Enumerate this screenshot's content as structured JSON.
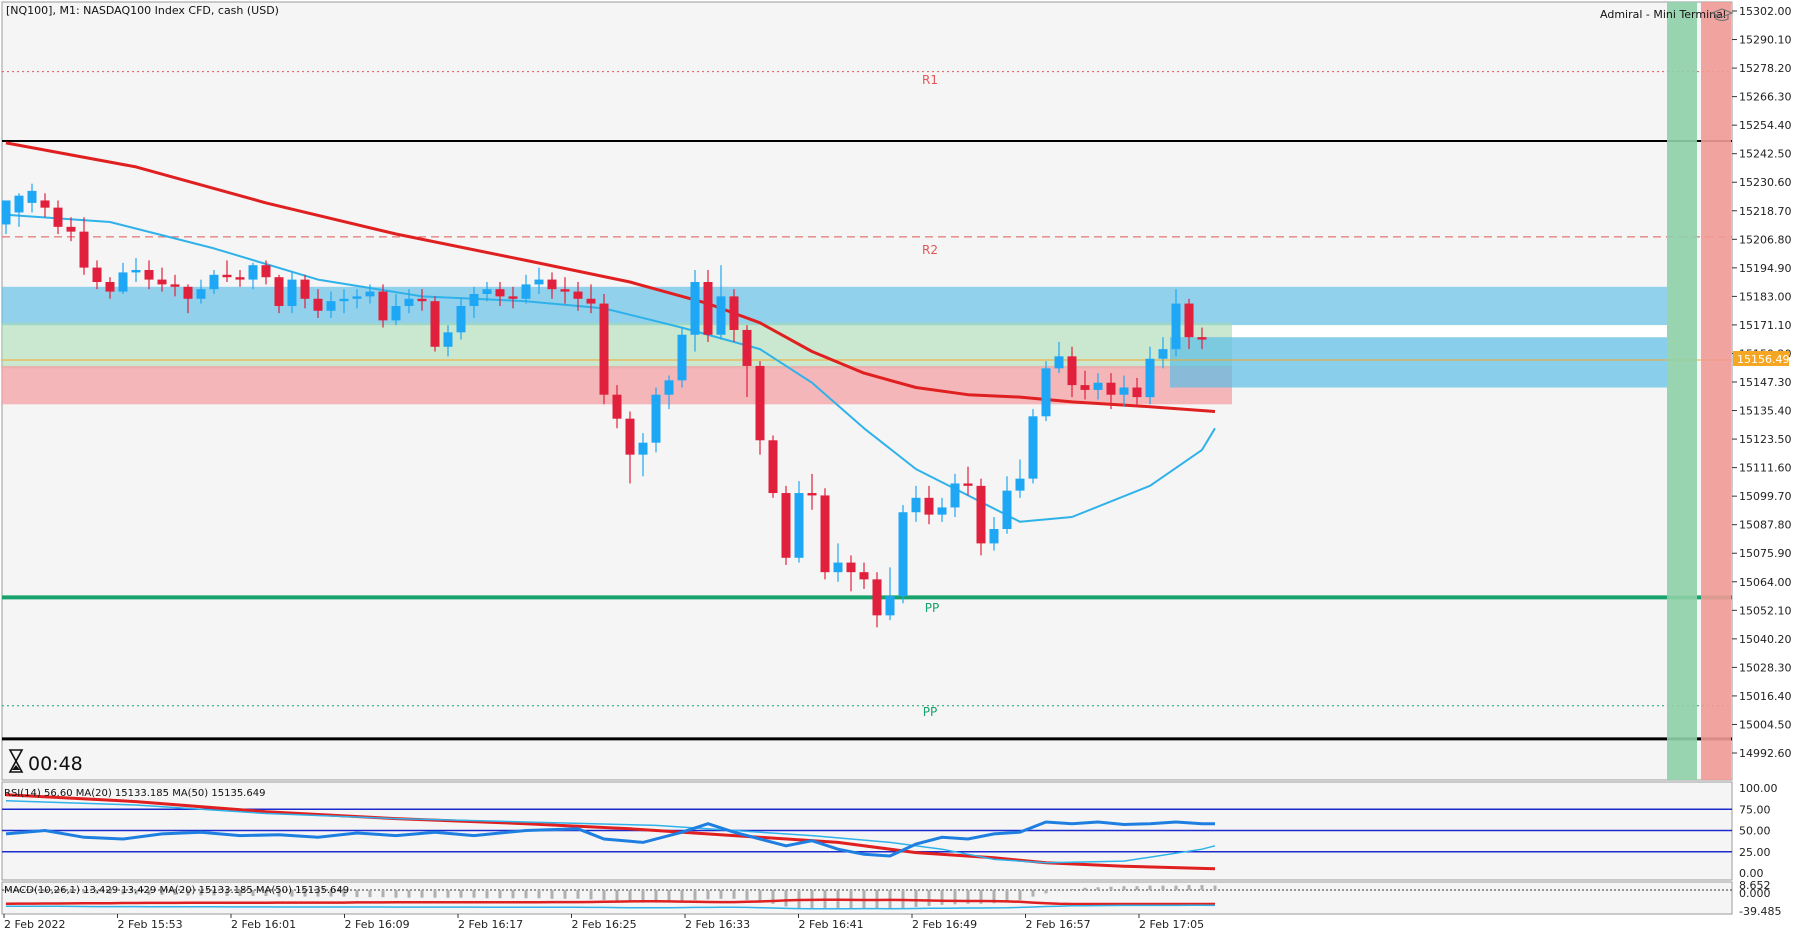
{
  "header": {
    "symbol": "[NQ100], M1:  NASDAQ100 Index CFD, cash (USD)",
    "terminal": "Admiral - Mini Terminal",
    "timer": "00:48"
  },
  "colors": {
    "bull": "#1ea7f5",
    "bear": "#e0203c",
    "ma_fast": "#2fb2ea",
    "ma_slow": "#e02020",
    "support_green": "#17a36b",
    "resistance_red": "#e05757",
    "buy_panel": "#8fd0a8",
    "sell_panel": "#f19a96",
    "price_tag": "#f5a623"
  },
  "levels": {
    "r1_label": "R1",
    "r2_label": "R2",
    "pp_label": "PP",
    "pp_label_2": "PP",
    "current_price": "15156.49"
  },
  "price_axis": {
    "ticks": [
      "15302.00",
      "15290.10",
      "15278.20",
      "15266.30",
      "15254.40",
      "15242.50",
      "15230.60",
      "15218.70",
      "15206.80",
      "15194.90",
      "15183.00",
      "15171.10",
      "15159.20",
      "15147.30",
      "15135.40",
      "15123.50",
      "15111.60",
      "15099.70",
      "15087.80",
      "15075.90",
      "15064.00",
      "15052.10",
      "15040.20",
      "15028.30",
      "15016.40",
      "15004.50",
      "14992.60"
    ]
  },
  "time_axis": {
    "labels": [
      "2 Feb 2022",
      "2 Feb 15:53",
      "2 Feb 16:01",
      "2 Feb 16:09",
      "2 Feb 16:17",
      "2 Feb 16:25",
      "2 Feb 16:33",
      "2 Feb 16:41",
      "2 Feb 16:49",
      "2 Feb 16:57",
      "2 Feb 17:05"
    ]
  },
  "rsi": {
    "label": "RSI(14) 56.60 MA(20) 15133.185 MA(50) 15135.649",
    "ticks": [
      "100.00",
      "75.00",
      "50.00",
      "25.00",
      "0.00"
    ]
  },
  "macd": {
    "label": "MACD(10,26,1) 13.429 13.429 MA(20) 15133.185 MA(50) 15135.649",
    "ticks": [
      "8.652",
      "0.000",
      "-39.485"
    ]
  },
  "chart_data": {
    "type": "candlestick",
    "ylim": [
      14985,
      15305
    ],
    "levels": {
      "R1": 15276.7,
      "R2": 15207.8,
      "PP": 15012.3,
      "support": 15057.5,
      "upper_black": 15247.8,
      "lower_black": 14998.5
    },
    "candles": [
      [
        15213,
        15223,
        15218,
        15209
      ],
      [
        15218,
        15225,
        15226,
        15212
      ],
      [
        15222,
        15227,
        15230,
        15218
      ],
      [
        15223,
        15220,
        15226,
        15216
      ],
      [
        15220,
        15212,
        15223,
        15209
      ],
      [
        15212,
        15210,
        15216,
        15206
      ],
      [
        15210,
        15195,
        15216,
        15192
      ],
      [
        15195,
        15189,
        15198,
        15186
      ],
      [
        15189,
        15185,
        15191,
        15182
      ],
      [
        15185,
        15193,
        15197,
        15184
      ],
      [
        15193,
        15194,
        15199,
        15189
      ],
      [
        15194,
        15190,
        15198,
        15186
      ],
      [
        15190,
        15188,
        15195,
        15185
      ],
      [
        15188,
        15187,
        15192,
        15183
      ],
      [
        15187,
        15182,
        15188,
        15176
      ],
      [
        15182,
        15186,
        15190,
        15180
      ],
      [
        15186,
        15192,
        15194,
        15184
      ],
      [
        15192,
        15191,
        15198,
        15189
      ],
      [
        15191,
        15190,
        15194,
        15187
      ],
      [
        15190,
        15196,
        15197,
        15186
      ],
      [
        15196,
        15191,
        15198,
        15188
      ],
      [
        15191,
        15179,
        15192,
        15176
      ],
      [
        15179,
        15190,
        15193,
        15176
      ],
      [
        15190,
        15182,
        15192,
        15178
      ],
      [
        15182,
        15177,
        15186,
        15174
      ],
      [
        15177,
        15181,
        15185,
        15174
      ],
      [
        15181,
        15182,
        15186,
        15176
      ],
      [
        15182,
        15183,
        15186,
        15178
      ],
      [
        15183,
        15185,
        15188,
        15180
      ],
      [
        15185,
        15173,
        15188,
        15170
      ],
      [
        15173,
        15179,
        15184,
        15171
      ],
      [
        15179,
        15182,
        15186,
        15176
      ],
      [
        15182,
        15181,
        15186,
        15177
      ],
      [
        15181,
        15162,
        15183,
        15160
      ],
      [
        15162,
        15168,
        15171,
        15158
      ],
      [
        15168,
        15179,
        15182,
        15165
      ],
      [
        15179,
        15184,
        15187,
        15174
      ],
      [
        15184,
        15186,
        15189,
        15181
      ],
      [
        15186,
        15183,
        15189,
        15179
      ],
      [
        15183,
        15182,
        15187,
        15178
      ],
      [
        15182,
        15188,
        15192,
        15180
      ],
      [
        15188,
        15190,
        15195,
        15184
      ],
      [
        15190,
        15186,
        15193,
        15182
      ],
      [
        15186,
        15185,
        15191,
        15180
      ],
      [
        15185,
        15182,
        15189,
        15177
      ],
      [
        15182,
        15180,
        15188,
        15176
      ],
      [
        15180,
        15142,
        15184,
        15138
      ],
      [
        15142,
        15132,
        15146,
        15128
      ],
      [
        15132,
        15117,
        15135,
        15105
      ],
      [
        15117,
        15122,
        15126,
        15108
      ],
      [
        15122,
        15142,
        15145,
        15118
      ],
      [
        15142,
        15148,
        15150,
        15136
      ],
      [
        15148,
        15167,
        15170,
        15145
      ],
      [
        15167,
        15189,
        15194,
        15160
      ],
      [
        15189,
        15167,
        15194,
        15164
      ],
      [
        15167,
        15183,
        15196,
        15165
      ],
      [
        15183,
        15169,
        15186,
        15164
      ],
      [
        15169,
        15154,
        15171,
        15141
      ],
      [
        15154,
        15123,
        15156,
        15117
      ],
      [
        15123,
        15101,
        15125,
        15099
      ],
      [
        15101,
        15074,
        15104,
        15071
      ],
      [
        15074,
        15101,
        15106,
        15072
      ],
      [
        15101,
        15100,
        15109,
        15094
      ],
      [
        15100,
        15068,
        15103,
        15065
      ],
      [
        15068,
        15072,
        15080,
        15064
      ],
      [
        15072,
        15068,
        15075,
        15060
      ],
      [
        15068,
        15065,
        15072,
        15061
      ],
      [
        15065,
        15050,
        15068,
        15045
      ],
      [
        15050,
        15058,
        15070,
        15048
      ],
      [
        15058,
        15093,
        15096,
        15055
      ],
      [
        15093,
        15099,
        15104,
        15089
      ],
      [
        15099,
        15092,
        15104,
        15088
      ],
      [
        15092,
        15095,
        15099,
        15089
      ],
      [
        15095,
        15105,
        15109,
        15091
      ],
      [
        15105,
        15104,
        15112,
        15100
      ],
      [
        15104,
        15080,
        15107,
        15075
      ],
      [
        15080,
        15086,
        15091,
        15077
      ],
      [
        15086,
        15102,
        15108,
        15084
      ],
      [
        15102,
        15107,
        15115,
        15099
      ],
      [
        15107,
        15133,
        15136,
        15105
      ],
      [
        15133,
        15153,
        15156,
        15131
      ],
      [
        15153,
        15158,
        15164,
        15151
      ],
      [
        15158,
        15146,
        15162,
        15141
      ],
      [
        15146,
        15144,
        15152,
        15140
      ],
      [
        15144,
        15147,
        15151,
        15140
      ],
      [
        15147,
        15142,
        15151,
        15136
      ],
      [
        15142,
        15145,
        15150,
        15137
      ],
      [
        15145,
        15141,
        15149,
        15137
      ],
      [
        15141,
        15157,
        15162,
        15138
      ],
      [
        15157,
        15161,
        15166,
        15153
      ],
      [
        15161,
        15180,
        15186,
        15158
      ],
      [
        15180,
        15166,
        15182,
        15161
      ],
      [
        15166,
        15165,
        15170,
        15161
      ]
    ],
    "ma_fast": [
      [
        0,
        15217
      ],
      [
        8,
        15214
      ],
      [
        16,
        15203
      ],
      [
        24,
        15190
      ],
      [
        32,
        15183
      ],
      [
        40,
        15181
      ],
      [
        46,
        15178
      ],
      [
        52,
        15170
      ],
      [
        58,
        15161
      ],
      [
        62,
        15147
      ],
      [
        66,
        15128
      ],
      [
        70,
        15111
      ],
      [
        74,
        15100
      ],
      [
        78,
        15089
      ],
      [
        82,
        15091
      ],
      [
        88,
        15104
      ],
      [
        92,
        15119
      ],
      [
        93,
        15128
      ]
    ],
    "ma_slow": [
      [
        0,
        15247
      ],
      [
        10,
        15237
      ],
      [
        20,
        15222
      ],
      [
        30,
        15209
      ],
      [
        40,
        15198
      ],
      [
        48,
        15189
      ],
      [
        54,
        15180
      ],
      [
        58,
        15172
      ],
      [
        62,
        15160
      ],
      [
        66,
        15151
      ],
      [
        70,
        15145
      ],
      [
        74,
        15142
      ],
      [
        78,
        15141
      ],
      [
        82,
        15139
      ],
      [
        88,
        15137
      ],
      [
        93,
        15135
      ]
    ],
    "zones": [
      {
        "name": "blue-zone-upper",
        "from": 15171,
        "to": 15187
      },
      {
        "name": "green-zone",
        "from": 15153,
        "to": 15172
      },
      {
        "name": "red-zone",
        "from": 15138,
        "to": 15154
      },
      {
        "name": "blue-zone-right",
        "from": 15145,
        "to": 15166
      }
    ],
    "rsi_series": [
      [
        0,
        46
      ],
      [
        3,
        50
      ],
      [
        6,
        42
      ],
      [
        9,
        40
      ],
      [
        12,
        46
      ],
      [
        15,
        48
      ],
      [
        18,
        44
      ],
      [
        21,
        45
      ],
      [
        24,
        42
      ],
      [
        27,
        47
      ],
      [
        30,
        44
      ],
      [
        33,
        48
      ],
      [
        36,
        44
      ],
      [
        40,
        50
      ],
      [
        44,
        52
      ],
      [
        46,
        40
      ],
      [
        49,
        36
      ],
      [
        52,
        48
      ],
      [
        54,
        58
      ],
      [
        56,
        48
      ],
      [
        58,
        40
      ],
      [
        60,
        32
      ],
      [
        62,
        38
      ],
      [
        64,
        28
      ],
      [
        66,
        22
      ],
      [
        68,
        20
      ],
      [
        70,
        34
      ],
      [
        72,
        42
      ],
      [
        74,
        40
      ],
      [
        76,
        46
      ],
      [
        78,
        48
      ],
      [
        80,
        60
      ],
      [
        82,
        58
      ],
      [
        84,
        60
      ],
      [
        86,
        57
      ],
      [
        88,
        58
      ],
      [
        90,
        60
      ],
      [
        92,
        58
      ],
      [
        93,
        58
      ]
    ],
    "rsi_ma20": [
      [
        0,
        85
      ],
      [
        10,
        80
      ],
      [
        20,
        70
      ],
      [
        30,
        64
      ],
      [
        40,
        60
      ],
      [
        50,
        56
      ],
      [
        56,
        50
      ],
      [
        62,
        44
      ],
      [
        68,
        36
      ],
      [
        72,
        28
      ],
      [
        76,
        16
      ],
      [
        80,
        12
      ],
      [
        86,
        14
      ],
      [
        92,
        28
      ],
      [
        93,
        32
      ]
    ],
    "rsi_ma50": [
      [
        0,
        92
      ],
      [
        10,
        84
      ],
      [
        20,
        72
      ],
      [
        30,
        64
      ],
      [
        40,
        58
      ],
      [
        48,
        52
      ],
      [
        56,
        44
      ],
      [
        64,
        36
      ],
      [
        70,
        24
      ],
      [
        76,
        18
      ],
      [
        80,
        12
      ],
      [
        86,
        8
      ],
      [
        93,
        5
      ]
    ],
    "macd_hist": [
      -2,
      -3,
      -3,
      -4,
      -4,
      -5,
      -6,
      -7,
      -7,
      -8,
      -8,
      -9,
      -9,
      -9,
      -10,
      -10,
      -10,
      -11,
      -11,
      -11,
      -11,
      -12,
      -12,
      -12,
      -12,
      -12,
      -12,
      -13,
      -13,
      -13,
      -14,
      -14,
      -14,
      -14,
      -14,
      -14,
      -14,
      -15,
      -15,
      -15,
      -15,
      -15,
      -16,
      -16,
      -16,
      -17,
      -18,
      -20,
      -22,
      -23,
      -23,
      -22,
      -20,
      -18,
      -17,
      -16,
      -16,
      -18,
      -21,
      -25,
      -30,
      -33,
      -34,
      -35,
      -35,
      -34,
      -33,
      -33,
      -34,
      -33,
      -31,
      -29,
      -27,
      -26,
      -25,
      -25,
      -24,
      -22,
      -18,
      -12,
      -6,
      -2,
      2,
      4,
      5,
      6,
      7,
      7,
      8,
      8,
      8,
      9,
      9,
      8
    ]
  }
}
